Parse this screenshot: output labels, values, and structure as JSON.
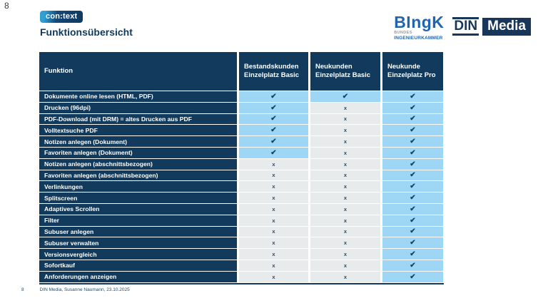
{
  "page": {
    "slide_number_top": "8"
  },
  "header": {
    "logo_text": "con:text",
    "title": "Funktionsübersicht"
  },
  "logos": {
    "bingk": {
      "word": "BIngK",
      "sub1": "BUNDES",
      "sub2": "INGENIEURKAMMER"
    },
    "din_media": {
      "din": "DIN",
      "media": "Media"
    }
  },
  "table": {
    "columns": [
      "Funktion",
      "Bestandskunden Einzelplatz Basic",
      "Neukunden Einzelplatz Basic",
      "Neukunde Einzelplatz Pro"
    ],
    "check_symbol": "✔",
    "cross_symbol": "x",
    "rows": [
      {
        "funktion": "Dokumente online lesen (HTML, PDF)",
        "marks": [
          "check",
          "check",
          "check"
        ]
      },
      {
        "funktion": "Drucken (96dpi)",
        "marks": [
          "check",
          "cross",
          "check"
        ]
      },
      {
        "funktion": "PDF-Download (mit DRM) = altes Drucken aus PDF",
        "marks": [
          "check",
          "cross",
          "check"
        ]
      },
      {
        "funktion": "Volltextsuche PDF",
        "marks": [
          "check",
          "cross",
          "check"
        ]
      },
      {
        "funktion": "Notizen anlegen (Dokument)",
        "marks": [
          "check",
          "cross",
          "check"
        ]
      },
      {
        "funktion": "Favoriten anlegen (Dokument)",
        "marks": [
          "check",
          "cross",
          "check"
        ]
      },
      {
        "funktion": "Notizen anlegen (abschnittsbezogen)",
        "marks": [
          "cross",
          "cross",
          "check"
        ]
      },
      {
        "funktion": "Favoriten anlegen (abschnittsbezogen)",
        "marks": [
          "cross",
          "cross",
          "check"
        ]
      },
      {
        "funktion": "Verlinkungen",
        "marks": [
          "cross",
          "cross",
          "check"
        ]
      },
      {
        "funktion": "Splitscreen",
        "marks": [
          "cross",
          "cross",
          "check"
        ]
      },
      {
        "funktion": "Adaptives Scrollen",
        "marks": [
          "cross",
          "cross",
          "check"
        ]
      },
      {
        "funktion": "Filter",
        "marks": [
          "cross",
          "cross",
          "check"
        ]
      },
      {
        "funktion": "Subuser anlegen",
        "marks": [
          "cross",
          "cross",
          "check"
        ]
      },
      {
        "funktion": "Subuser verwalten",
        "marks": [
          "cross",
          "cross",
          "check"
        ]
      },
      {
        "funktion": "Versionsvergleich",
        "marks": [
          "cross",
          "cross",
          "check"
        ]
      },
      {
        "funktion": "Sofortkauf",
        "marks": [
          "cross",
          "cross",
          "check"
        ]
      },
      {
        "funktion": "Anforderungen anzeigen",
        "marks": [
          "cross",
          "cross",
          "check"
        ]
      }
    ]
  },
  "footer": {
    "slide_number": "8",
    "text": "DIN Media, Susanne Naumann, 23.10.2025"
  },
  "colors": {
    "table_navy": "#113a5c",
    "check_cell_blue": "#9ed7f5",
    "cross_cell_gray": "#e8ebeb",
    "title_navy": "#0d3a5f",
    "bingk_blue": "#2265ae",
    "din_navy": "#17365a",
    "context_logo_light_blue": "#2f9fd4"
  }
}
